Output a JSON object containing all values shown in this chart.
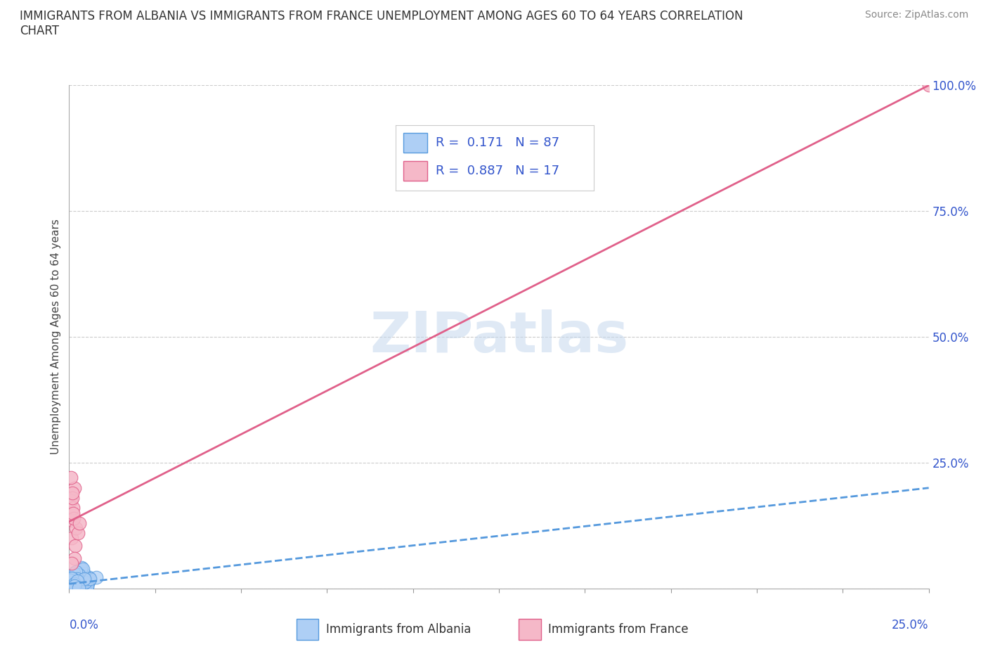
{
  "title_line1": "IMMIGRANTS FROM ALBANIA VS IMMIGRANTS FROM FRANCE UNEMPLOYMENT AMONG AGES 60 TO 64 YEARS CORRELATION",
  "title_line2": "CHART",
  "source_text": "Source: ZipAtlas.com",
  "ylabel": "Unemployment Among Ages 60 to 64 years",
  "xlim": [
    0,
    0.25
  ],
  "ylim": [
    0,
    1.0
  ],
  "ytick_vals": [
    0.0,
    0.25,
    0.5,
    0.75,
    1.0
  ],
  "ytick_labels": [
    "",
    "25.0%",
    "50.0%",
    "75.0%",
    "100.0%"
  ],
  "watermark": "ZIPatlas",
  "albania_color": "#aecff5",
  "albania_edge_color": "#5599dd",
  "albania_trend_color": "#5599dd",
  "france_color": "#f5b8c8",
  "france_edge_color": "#e0608a",
  "france_trend_color": "#e0608a",
  "albania_R": 0.171,
  "albania_N": 87,
  "france_R": 0.887,
  "france_N": 17,
  "legend_text_color": "#3355cc",
  "title_color": "#333333",
  "background_color": "#ffffff",
  "plot_bg_color": "#ffffff",
  "grid_color": "#cccccc",
  "france_x": [
    0.0005,
    0.001,
    0.0008,
    0.0015,
    0.002,
    0.0012,
    0.0018,
    0.0006,
    0.0025,
    0.001,
    0.0014,
    0.0009,
    0.0016,
    0.0011,
    0.0007,
    0.003,
    0.25
  ],
  "france_y": [
    0.175,
    0.135,
    0.1,
    0.2,
    0.12,
    0.16,
    0.085,
    0.22,
    0.11,
    0.18,
    0.14,
    0.19,
    0.06,
    0.15,
    0.05,
    0.13,
    1.0
  ]
}
